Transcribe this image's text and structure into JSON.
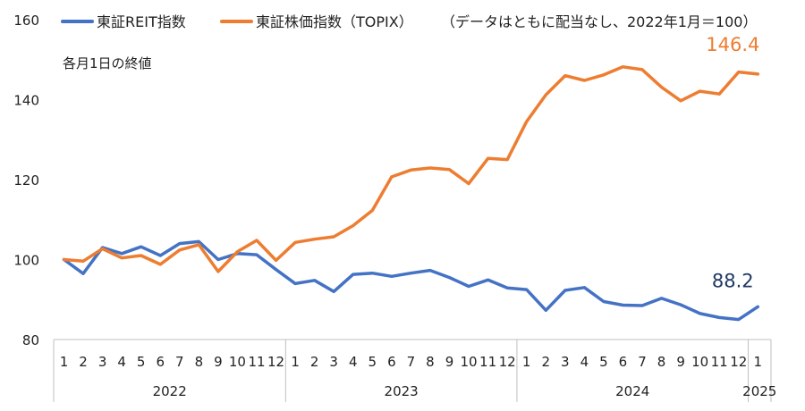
{
  "chart_data": {
    "type": "line",
    "subtitle": "各月1日の終値",
    "legend_note": "（データはともに配当なし、2022年1月＝100）",
    "legend_position": "top",
    "ylim": [
      80,
      160
    ],
    "yticks": [
      80,
      100,
      120,
      140,
      160
    ],
    "month_labels": [
      "1",
      "2",
      "3",
      "4",
      "5",
      "6",
      "7",
      "8",
      "9",
      "10",
      "11",
      "12",
      "1",
      "2",
      "3",
      "4",
      "5",
      "6",
      "7",
      "8",
      "9",
      "10",
      "11",
      "12",
      "1",
      "2",
      "3",
      "4",
      "5",
      "6",
      "7",
      "8",
      "9",
      "10",
      "11",
      "12",
      "1"
    ],
    "years": [
      {
        "label": "2022",
        "months": 12
      },
      {
        "label": "2023",
        "months": 12
      },
      {
        "label": "2024",
        "months": 12
      },
      {
        "label": "2025",
        "months": 1
      }
    ],
    "series": [
      {
        "name": "東証REIT指数",
        "color": "#4472C4",
        "values": [
          100,
          96.5,
          103,
          101.5,
          103.2,
          101,
          104,
          104.5,
          100,
          101.5,
          101.2,
          97.5,
          94,
          94.8,
          92,
          96.3,
          96.6,
          95.8,
          96.6,
          97.3,
          95.5,
          93.3,
          94.9,
          92.9,
          92.5,
          87.3,
          92.3,
          93,
          89.5,
          88.6,
          88.5,
          90.3,
          88.7,
          86.5,
          85.5,
          85,
          88.2
        ],
        "end_label": "88.2"
      },
      {
        "name": "東証株価指数（TOPIX）",
        "color": "#ED7D31",
        "values": [
          100,
          99.6,
          102.7,
          100.4,
          101,
          98.8,
          102.4,
          103.7,
          97,
          102,
          104.8,
          99.8,
          104.3,
          105.1,
          105.7,
          108.5,
          112.3,
          120.7,
          122.4,
          122.9,
          122.5,
          119,
          125.3,
          125,
          134.5,
          141.2,
          146,
          144.8,
          146.2,
          148.2,
          147.5,
          143.1,
          139.7,
          142.1,
          141.4,
          146.9,
          146.4
        ],
        "end_label": "146.4"
      }
    ]
  }
}
